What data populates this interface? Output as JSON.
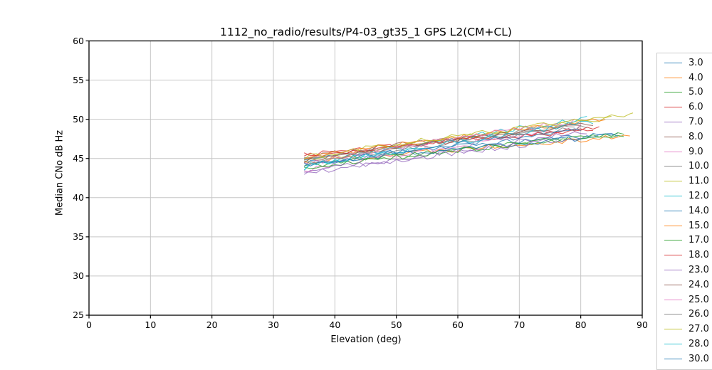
{
  "figure": {
    "background": "#ffffff",
    "grid_color": "#c6c6c6",
    "spine_color": "#000000",
    "legend_border_color": "#cccccc"
  },
  "chart_data": {
    "type": "line",
    "title": "1112_no_radio/results/P4-03_gt35_1 GPS L2(CM+CL)",
    "xlabel": "Elevation (deg)",
    "ylabel": "Median CNo dB Hz",
    "xlim": [
      0,
      90
    ],
    "ylim": [
      25,
      60
    ],
    "xticks": [
      0,
      10,
      20,
      30,
      40,
      50,
      60,
      70,
      80,
      90
    ],
    "yticks": [
      25,
      30,
      35,
      40,
      45,
      50,
      55,
      60
    ],
    "grid": true,
    "legend_position": "right-outside-clipped",
    "note": "21 noisy satellite C/No traces starting near elevation 35 deg at 43-45.5 dB Hz rising to 47.5-50.7 dB Hz by 80-88 deg; last legend row clipped by figure edge",
    "series": [
      {
        "name": "3.0",
        "color": "#1f77b4",
        "x_start": 35,
        "x_end": 86,
        "y_start": 44.8,
        "y_end": 48.2,
        "noise": 0.35,
        "seed": 11
      },
      {
        "name": "4.0",
        "color": "#ff7f0e",
        "x_start": 35,
        "x_end": 88,
        "y_start": 44.5,
        "y_end": 47.9,
        "noise": 0.38,
        "seed": 22
      },
      {
        "name": "5.0",
        "color": "#2ca02c",
        "x_start": 35,
        "x_end": 87,
        "y_start": 44.0,
        "y_end": 48.1,
        "noise": 0.35,
        "seed": 33
      },
      {
        "name": "6.0",
        "color": "#d62728",
        "x_start": 35,
        "x_end": 82,
        "y_start": 45.5,
        "y_end": 48.6,
        "noise": 0.34,
        "seed": 44
      },
      {
        "name": "7.0",
        "color": "#9467bd",
        "x_start": 35,
        "x_end": 81,
        "y_start": 43.0,
        "y_end": 48.3,
        "noise": 0.4,
        "seed": 55
      },
      {
        "name": "8.0",
        "color": "#8c564b",
        "x_start": 35,
        "x_end": 80,
        "y_start": 45.2,
        "y_end": 49.3,
        "noise": 0.3,
        "seed": 66
      },
      {
        "name": "9.0",
        "color": "#e377c2",
        "x_start": 35,
        "x_end": 80,
        "y_start": 43.5,
        "y_end": 49.0,
        "noise": 0.42,
        "seed": 77
      },
      {
        "name": "10.0",
        "color": "#7f7f7f",
        "x_start": 35,
        "x_end": 79,
        "y_start": 44.9,
        "y_end": 49.2,
        "noise": 0.3,
        "seed": 88
      },
      {
        "name": "11.0",
        "color": "#bcbd22",
        "x_start": 35,
        "x_end": 88.5,
        "y_start": 44.6,
        "y_end": 50.6,
        "noise": 0.33,
        "seed": 99
      },
      {
        "name": "12.0",
        "color": "#17becf",
        "x_start": 35,
        "x_end": 81,
        "y_start": 43.8,
        "y_end": 50.2,
        "noise": 0.4,
        "seed": 110
      },
      {
        "name": "14.0",
        "color": "#1f77b4",
        "x_start": 35,
        "x_end": 86,
        "y_start": 44.3,
        "y_end": 48.0,
        "noise": 0.36,
        "seed": 121
      },
      {
        "name": "15.0",
        "color": "#ff7f0e",
        "x_start": 35,
        "x_end": 84,
        "y_start": 45.0,
        "y_end": 50.0,
        "noise": 0.34,
        "seed": 132
      },
      {
        "name": "17.0",
        "color": "#2ca02c",
        "x_start": 35,
        "x_end": 87,
        "y_start": 43.6,
        "y_end": 48.3,
        "noise": 0.38,
        "seed": 143
      },
      {
        "name": "18.0",
        "color": "#d62728",
        "x_start": 35,
        "x_end": 83,
        "y_start": 45.3,
        "y_end": 48.9,
        "noise": 0.33,
        "seed": 154
      },
      {
        "name": "23.0",
        "color": "#9467bd",
        "x_start": 35,
        "x_end": 80,
        "y_start": 43.2,
        "y_end": 47.6,
        "noise": 0.4,
        "seed": 165
      },
      {
        "name": "24.0",
        "color": "#8c564b",
        "x_start": 35,
        "x_end": 82,
        "y_start": 44.7,
        "y_end": 49.5,
        "noise": 0.3,
        "seed": 176
      },
      {
        "name": "25.0",
        "color": "#e377c2",
        "x_start": 35,
        "x_end": 79,
        "y_start": 44.2,
        "y_end": 49.8,
        "noise": 0.38,
        "seed": 187
      },
      {
        "name": "26.0",
        "color": "#7f7f7f",
        "x_start": 35,
        "x_end": 81,
        "y_start": 44.4,
        "y_end": 49.0,
        "noise": 0.32,
        "seed": 198
      },
      {
        "name": "27.0",
        "color": "#bcbd22",
        "x_start": 35,
        "x_end": 85,
        "y_start": 45.1,
        "y_end": 50.3,
        "noise": 0.33,
        "seed": 209
      },
      {
        "name": "28.0",
        "color": "#17becf",
        "x_start": 35,
        "x_end": 82,
        "y_start": 43.9,
        "y_end": 49.6,
        "noise": 0.4,
        "seed": 220
      },
      {
        "name": "30.0",
        "color": "#1f77b4",
        "x_start": 35,
        "x_end": 80,
        "y_start": 44.1,
        "y_end": 48.7,
        "noise": 0.35,
        "seed": 231,
        "legend_clipped": true
      }
    ]
  }
}
